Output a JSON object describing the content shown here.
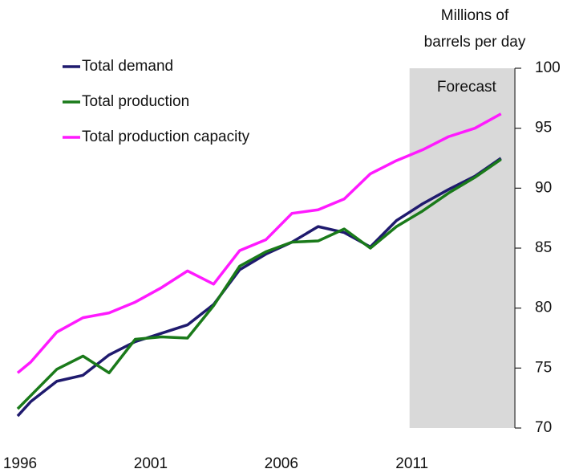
{
  "chart_data": {
    "type": "line",
    "y_axis_label": [
      "Millions of",
      "barrels per day"
    ],
    "forecast": {
      "label": "Forecast",
      "range": [
        2011,
        2015
      ],
      "color": "#d9d9d9"
    },
    "x": [
      1996,
      1996.5,
      1997.5,
      1998.5,
      1999.5,
      2000.5,
      2001.5,
      2002.5,
      2003.5,
      2004.5,
      2005.5,
      2006.5,
      2007.5,
      2008.5,
      2009.5,
      2010.5,
      2011.5,
      2012.5,
      2013.5,
      2014.5
    ],
    "series": [
      {
        "name": "Total demand",
        "color": "#1f1a6e",
        "values": [
          71.0,
          72.2,
          73.9,
          74.4,
          76.1,
          77.2,
          77.9,
          78.6,
          80.3,
          83.2,
          84.5,
          85.5,
          86.8,
          86.3,
          85.1,
          87.3,
          88.7,
          89.9,
          91.0,
          92.5
        ]
      },
      {
        "name": "Total production",
        "color": "#1a7a1a",
        "values": [
          71.6,
          72.7,
          74.9,
          76.0,
          74.6,
          77.4,
          77.6,
          77.5,
          80.2,
          83.5,
          84.7,
          85.5,
          85.6,
          86.6,
          85.0,
          86.8,
          88.1,
          89.6,
          90.9,
          92.4
        ]
      },
      {
        "name": "Total production capacity",
        "color": "#ff1aff",
        "values": [
          74.6,
          75.5,
          78.0,
          79.2,
          79.6,
          80.5,
          81.7,
          83.1,
          82.0,
          84.8,
          85.7,
          87.9,
          88.2,
          89.1,
          91.2,
          92.3,
          93.2,
          94.3,
          95.0,
          96.2
        ]
      }
    ],
    "xlim": [
      1996,
      2015
    ],
    "xticks": [
      1996,
      2001,
      2006,
      2011
    ],
    "ylim": [
      70,
      100
    ],
    "yticks": [
      70,
      75,
      80,
      85,
      90,
      95,
      100
    ],
    "grid": false,
    "legend": "top-left"
  }
}
